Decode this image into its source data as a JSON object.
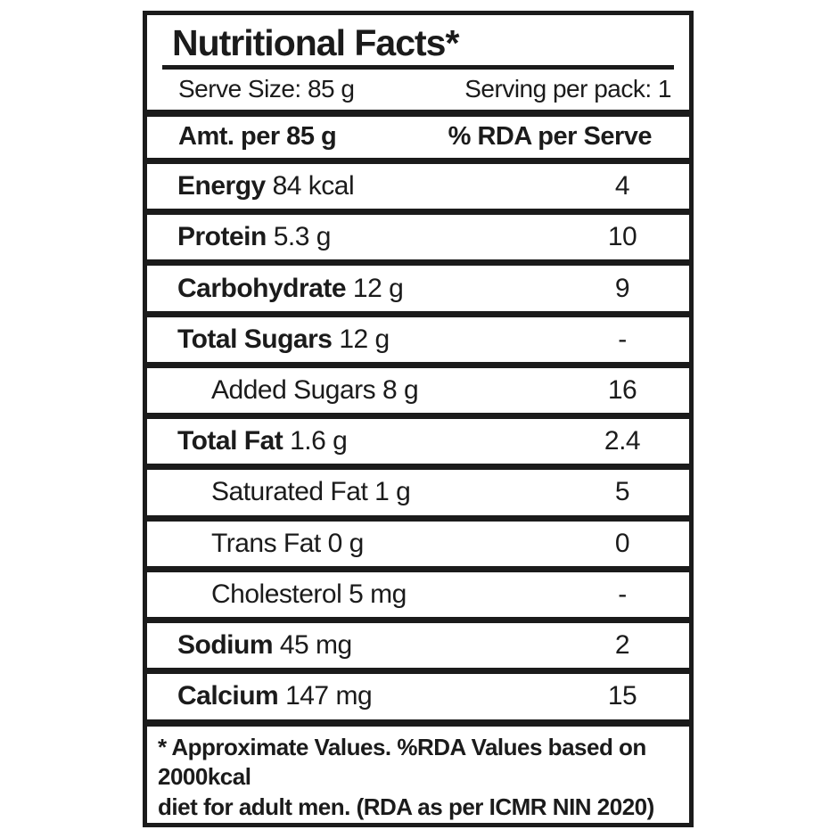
{
  "label": {
    "title": "Nutritional Facts*",
    "serve_size": "Serve Size: 85 g",
    "serving_per_pack": "Serving per pack: 1",
    "columns": {
      "amount": "Amt. per 85 g",
      "rda": "% RDA per Serve"
    },
    "rows": [
      {
        "name": "Energy",
        "amount": "84 kcal",
        "rda": "4"
      },
      {
        "name": "Protein",
        "amount": "5.3 g",
        "rda": "10"
      },
      {
        "name": "Carbohydrate",
        "amount": "12 g",
        "rda": "9"
      },
      {
        "name": "Total Sugars",
        "amount": "12 g",
        "rda": "-"
      },
      {
        "name": "Added Sugars",
        "amount": "8 g",
        "rda": "16"
      },
      {
        "name": "Total Fat",
        "amount": "1.6 g",
        "rda": "2.4"
      },
      {
        "name": "Saturated Fat",
        "amount": "1 g",
        "rda": "5"
      },
      {
        "name": "Trans Fat",
        "amount": "0 g",
        "rda": "0"
      },
      {
        "name": "Cholesterol",
        "amount": "5 mg",
        "rda": "-"
      },
      {
        "name": "Sodium",
        "amount": "45 mg",
        "rda": "2"
      },
      {
        "name": "Calcium",
        "amount": "147 mg",
        "rda": "15"
      }
    ],
    "footnote_line1": "* Approximate Values. %RDA Values based on 2000kcal",
    "footnote_line2": "diet for adult men. (RDA as per ICMR NIN 2020)",
    "colors": {
      "ink": "#1b1b1b",
      "background": "#ffffff"
    }
  }
}
